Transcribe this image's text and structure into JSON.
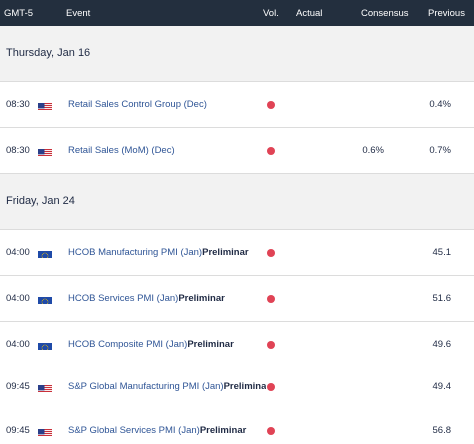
{
  "header": {
    "timezone": "GMT-5",
    "event": "Event",
    "vol": "Vol.",
    "actual": "Actual",
    "consensus": "Consensus",
    "previous": "Previous"
  },
  "days": [
    {
      "date": "Thursday, Jan 16",
      "events": [
        {
          "time": "08:30",
          "flag": "us-flag-icon",
          "name": "Retail Sales Control Group (Dec)",
          "suffix": "",
          "consensus": "",
          "previous": "0.4%"
        },
        {
          "time": "08:30",
          "flag": "us-flag-icon",
          "name": "Retail Sales (MoM) (Dec)",
          "suffix": "",
          "consensus": "0.6%",
          "previous": "0.7%"
        }
      ]
    },
    {
      "date": "Friday, Jan 24",
      "events": [
        {
          "time": "04:00",
          "flag": "eu-flag-icon",
          "name": "HCOB Manufacturing PMI (Jan)",
          "suffix": "Preliminar",
          "consensus": "",
          "previous": "45.1"
        },
        {
          "time": "04:00",
          "flag": "eu-flag-icon",
          "name": "HCOB Services PMI (Jan)",
          "suffix": "Preliminar",
          "consensus": "",
          "previous": "51.6"
        },
        {
          "time": "04:00",
          "flag": "eu-flag-icon",
          "name": "HCOB Composite PMI (Jan)",
          "suffix": "Preliminar",
          "consensus": "",
          "previous": "49.6"
        },
        {
          "time": "09:45",
          "flag": "us-flag-icon",
          "name": "S&P Global Manufacturing PMI (Jan)",
          "suffix": "Preliminar",
          "consensus": "",
          "previous": "49.4"
        },
        {
          "time": "09:45",
          "flag": "us-flag-icon",
          "name": "S&P Global Services PMI (Jan)",
          "suffix": "Preliminar",
          "consensus": "",
          "previous": "56.8"
        }
      ]
    }
  ],
  "colors": {
    "header_bg": "#232f3e",
    "event_link": "#2f5596",
    "volatility_dot": "#e04355",
    "date_row_bg": "#f2f2f2"
  }
}
